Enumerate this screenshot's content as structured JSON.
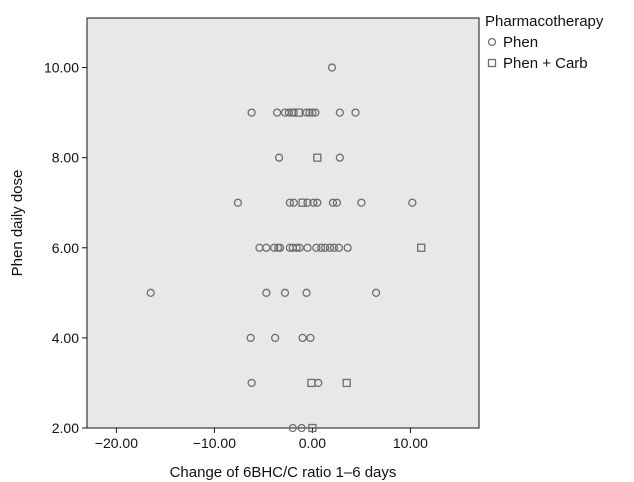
{
  "chart_data": {
    "type": "scatter",
    "title": "",
    "xlabel": "Change of 6BHC/C ratio 1–6 days",
    "ylabel": "Phen daily dose",
    "xlim": [
      -23,
      17
    ],
    "ylim": [
      2,
      11.1
    ],
    "x_ticks": [
      -20,
      -10,
      0,
      10
    ],
    "x_tick_labels": [
      "−20.00",
      "−10.00",
      "0.00",
      "10.00"
    ],
    "y_ticks": [
      2,
      4,
      6,
      8,
      10
    ],
    "y_tick_labels": [
      "2.00",
      "4.00",
      "6.00",
      "8.00",
      "10.00"
    ],
    "grid": false,
    "plot_background": "#e8e8e8",
    "marker_color": "#6e6e6e",
    "legend": {
      "title": "Pharmacotherapy",
      "placement": "right-outside-top"
    },
    "series": [
      {
        "name": "Phen",
        "marker": "circle",
        "points": [
          [
            2.0,
            10
          ],
          [
            -6.2,
            9
          ],
          [
            -3.6,
            9
          ],
          [
            -2.8,
            9
          ],
          [
            -2.4,
            9
          ],
          [
            -2.1,
            9
          ],
          [
            -1.9,
            9
          ],
          [
            -0.6,
            9
          ],
          [
            -0.3,
            9
          ],
          [
            0.0,
            9
          ],
          [
            0.3,
            9
          ],
          [
            2.8,
            9
          ],
          [
            4.4,
            9
          ],
          [
            -3.4,
            8
          ],
          [
            2.8,
            8
          ],
          [
            -7.6,
            7
          ],
          [
            -2.3,
            7
          ],
          [
            -1.9,
            7
          ],
          [
            -0.5,
            7
          ],
          [
            0.1,
            7
          ],
          [
            0.5,
            7
          ],
          [
            2.1,
            7
          ],
          [
            2.5,
            7
          ],
          [
            5.0,
            7
          ],
          [
            10.2,
            7
          ],
          [
            -5.4,
            6
          ],
          [
            -4.7,
            6
          ],
          [
            -3.9,
            6
          ],
          [
            -3.5,
            6
          ],
          [
            -3.3,
            6
          ],
          [
            -2.3,
            6
          ],
          [
            -2.0,
            6
          ],
          [
            -1.6,
            6
          ],
          [
            -1.3,
            6
          ],
          [
            -0.5,
            6
          ],
          [
            0.4,
            6
          ],
          [
            0.9,
            6
          ],
          [
            1.3,
            6
          ],
          [
            1.8,
            6
          ],
          [
            2.2,
            6
          ],
          [
            2.7,
            6
          ],
          [
            3.6,
            6
          ],
          [
            -16.5,
            5
          ],
          [
            -4.7,
            5
          ],
          [
            -2.8,
            5
          ],
          [
            -0.6,
            5
          ],
          [
            6.5,
            5
          ],
          [
            -6.3,
            4
          ],
          [
            -3.8,
            4
          ],
          [
            -1.0,
            4
          ],
          [
            -0.2,
            4
          ],
          [
            -6.2,
            3
          ],
          [
            0.6,
            3
          ],
          [
            -2.0,
            2
          ],
          [
            -1.1,
            2
          ]
        ]
      },
      {
        "name": "Phen + Carb",
        "marker": "square",
        "points": [
          [
            -1.4,
            9
          ],
          [
            0.5,
            8
          ],
          [
            -1.0,
            7
          ],
          [
            11.1,
            6
          ],
          [
            -0.1,
            3
          ],
          [
            3.5,
            3
          ],
          [
            0.0,
            2
          ]
        ]
      }
    ]
  }
}
